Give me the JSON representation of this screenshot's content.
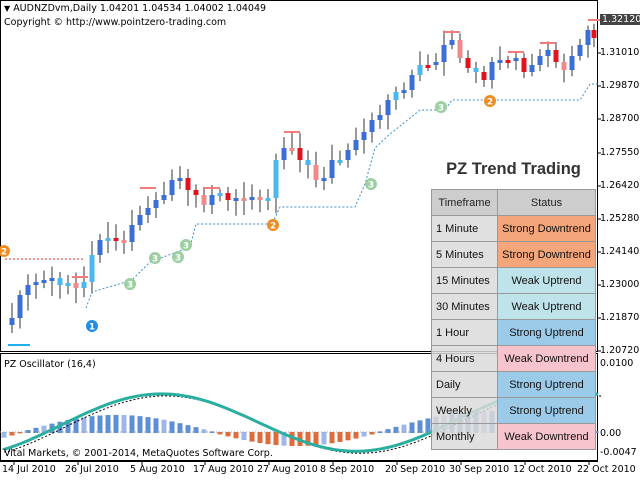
{
  "window": {
    "symbol_line": "AUDNZDvm,Daily  1.04201 1.04534 1.04002 1.04049",
    "copyright_line": "Copyright © http://www.pointzero-trading.com"
  },
  "price_axis": [
    "1.32120",
    "1.31010",
    "1.29870",
    "1.28700",
    "1.27550",
    "1.26420",
    "1.25280",
    "1.24140",
    "1.23000",
    "1.21870",
    "1.20720"
  ],
  "current_price": "1.32120",
  "date_axis": [
    "14 Jul 2010",
    "26 Jul 2010",
    "5 Aug 2010",
    "17 Aug 2010",
    "27 Aug 2010",
    "8 Sep 2010",
    "20 Sep 2010",
    "30 Sep 2010",
    "12 Oct 2010",
    "22 Oct 2010"
  ],
  "oscillator": {
    "title": "PZ Oscillator (16,4)",
    "axis": [
      "0.0100",
      "0.00",
      "-0.0047"
    ]
  },
  "footer": "Vital Markets, © 2001-2014, MetaQuotes Software Corp.",
  "trend_panel": {
    "title": "PZ Trend Trading",
    "col_timeframe": "Timeframe",
    "col_status": "Status",
    "rows": [
      {
        "timeframe": "1 Minute",
        "status": "Strong Downtrend",
        "color": "#f4a67a"
      },
      {
        "timeframe": "5 Minutes",
        "status": "Strong Downtrend",
        "color": "#f4a67a"
      },
      {
        "timeframe": "15 Minutes",
        "status": "Weak Uptrend",
        "color": "#bfe3ea"
      },
      {
        "timeframe": "30 Minutes",
        "status": "Weak Uptrend",
        "color": "#bfe3ea"
      },
      {
        "timeframe": "1 Hour",
        "status": "Strong Uptrend",
        "color": "#9ccbea"
      },
      {
        "timeframe": "4 Hours",
        "status": "Weak Downtrend",
        "color": "#f7c3cc"
      },
      {
        "timeframe": "Daily",
        "status": "Strong Uptrend",
        "color": "#9ccbea"
      },
      {
        "timeframe": "Weekly",
        "status": "Strong Uptrend",
        "color": "#9ccbea"
      },
      {
        "timeframe": "Monthly",
        "status": "Weak Downtrend",
        "color": "#f7c3cc"
      }
    ]
  },
  "markers": [
    "1",
    "2",
    "3",
    "3",
    "3",
    "3",
    "2",
    "2",
    "3",
    "3"
  ],
  "colors": {
    "bull": "#3a6fd8",
    "bear": "#e2141b",
    "light_blue": "#49b7f0",
    "salmon": "#f08a8a",
    "osc_line": "#2aaea0",
    "green_marker": "#9ccf9f",
    "orange_marker": "#f08c1e",
    "blue_marker": "#1f8fe6"
  }
}
